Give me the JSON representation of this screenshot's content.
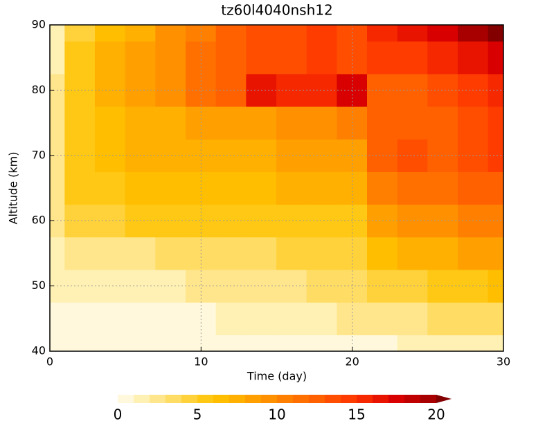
{
  "chart_data": {
    "type": "contour",
    "title": "tz60l4040nsh12",
    "x_label": "Time (day)",
    "y_label": "Altitude (km)",
    "xlim": [
      0,
      30
    ],
    "xticks": [
      0,
      10,
      20,
      30
    ],
    "ylim": [
      40,
      90
    ],
    "yticks": [
      40,
      50,
      60,
      70,
      80,
      90
    ],
    "grid": true,
    "x": [
      0,
      2,
      4,
      6,
      8,
      10,
      12,
      14,
      16,
      18,
      20,
      22,
      24,
      26,
      28,
      30
    ],
    "y": [
      40,
      45,
      50,
      55,
      60,
      65,
      70,
      75,
      80,
      85,
      90
    ],
    "z": [
      [
        0,
        0,
        0,
        0,
        0,
        0,
        0,
        0,
        0,
        0,
        0.5,
        0.5,
        1,
        1,
        1.5,
        1.5
      ],
      [
        0.5,
        0.5,
        0.5,
        0.5,
        0.5,
        0.8,
        1,
        1,
        1,
        1.5,
        2,
        2,
        2.5,
        3,
        3,
        3.5
      ],
      [
        1,
        1,
        1,
        1.5,
        1.5,
        2,
        2,
        2,
        2.5,
        3,
        3,
        4,
        4.5,
        5,
        5.5,
        6
      ],
      [
        1.5,
        2,
        2.5,
        2.5,
        3,
        3,
        3,
        3.5,
        4,
        4,
        4.5,
        6,
        7,
        7.5,
        8,
        8
      ],
      [
        2,
        4,
        4.5,
        5,
        5,
        5,
        5,
        5.5,
        5.5,
        5.5,
        5.5,
        8,
        9,
        9.5,
        10,
        10
      ],
      [
        2,
        5,
        5.5,
        6,
        6,
        6,
        6,
        6.5,
        7,
        7,
        7.5,
        10,
        11,
        11,
        12,
        12
      ],
      [
        2,
        5,
        6,
        7,
        7.5,
        7,
        7,
        7.5,
        8,
        8,
        8.5,
        12,
        13,
        12,
        13,
        14
      ],
      [
        2,
        5,
        6,
        7,
        7.5,
        8,
        8,
        8.5,
        9,
        9,
        10,
        12,
        12,
        12,
        13,
        14
      ],
      [
        2,
        5,
        7,
        8,
        9,
        11,
        12,
        16,
        15,
        15,
        17,
        12,
        12,
        13,
        14,
        15
      ],
      [
        1,
        5,
        7,
        8,
        9,
        11,
        12,
        13,
        13,
        14,
        13,
        14,
        14,
        15,
        16,
        17
      ],
      [
        1,
        4,
        6,
        7,
        9,
        10,
        12,
        13,
        13,
        14,
        13,
        15,
        16,
        17,
        19,
        20
      ]
    ],
    "colorbar": {
      "levels": [
        0,
        1,
        2,
        3,
        4,
        5,
        6,
        7,
        8,
        9,
        10,
        11,
        12,
        13,
        14,
        15,
        16,
        17,
        18,
        19,
        20
      ],
      "colors": [
        "#fff8dc",
        "#fff0b4",
        "#ffe68c",
        "#ffdc64",
        "#ffd23c",
        "#ffc814",
        "#ffbe00",
        "#ffb000",
        "#ffa000",
        "#ff9000",
        "#ff8000",
        "#ff7000",
        "#ff6000",
        "#ff4e00",
        "#ff3c00",
        "#f52800",
        "#e81400",
        "#d80000",
        "#c00000",
        "#a80000",
        "#820000"
      ],
      "extend": "max",
      "ticks": [
        0,
        5,
        10,
        15,
        20
      ]
    }
  }
}
